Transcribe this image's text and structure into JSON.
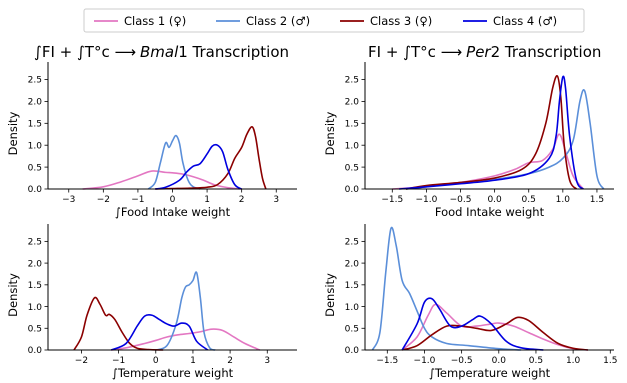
{
  "legend": [
    {
      "label": "Class 1 (♀)",
      "color": "#e377c2"
    },
    {
      "label": "Class 2 (♂)",
      "color": "#5b8fd9"
    },
    {
      "label": "Class 3 (♀)",
      "color": "#8b0000"
    },
    {
      "label": "Class 4 (♂)",
      "color": "#0000e0"
    }
  ],
  "titles": {
    "left": {
      "pre": "∫FI + ∫T°c ⟶",
      "italic": "Bmal",
      "post": "1 Transcription"
    },
    "right": {
      "pre": "FI + ∫T°c ⟶",
      "italic": "Per",
      "post": "2 Transcription"
    }
  },
  "chart_data": [
    {
      "type": "area",
      "xlabel": "∫Food Intake weight",
      "ylabel": "Density",
      "xlim": [
        -3.6,
        3.6
      ],
      "ylim": [
        0,
        2.9
      ],
      "xticks": [
        -3,
        -2,
        -1,
        0,
        1,
        2,
        3
      ],
      "xtick_labels": [
        "−3",
        "−2",
        "−1",
        "0",
        "1",
        "2",
        "3"
      ],
      "yticks": [
        0.0,
        0.5,
        1.0,
        1.5,
        2.0,
        2.5
      ],
      "ytick_labels": [
        "0.0",
        "0.5",
        "1.0",
        "1.5",
        "2.0",
        "2.5"
      ],
      "series": [
        {
          "name": "Class 1 (♀)",
          "color": "#e377c2",
          "x": [
            -2.6,
            -2.0,
            -1.5,
            -1.0,
            -0.6,
            -0.2,
            0.0,
            0.3,
            0.6,
            0.9,
            1.2,
            1.6,
            2.0
          ],
          "y": [
            0.0,
            0.05,
            0.16,
            0.3,
            0.41,
            0.38,
            0.37,
            0.34,
            0.28,
            0.2,
            0.1,
            0.03,
            0.0
          ]
        },
        {
          "name": "Class 2 (♂)",
          "color": "#5b8fd9",
          "x": [
            -0.7,
            -0.5,
            -0.35,
            -0.2,
            -0.1,
            0.0,
            0.1,
            0.2,
            0.3,
            0.45,
            0.6,
            0.8
          ],
          "y": [
            0.0,
            0.15,
            0.6,
            1.05,
            0.95,
            1.1,
            1.22,
            1.05,
            0.6,
            0.2,
            0.05,
            0.0
          ]
        },
        {
          "name": "Class 3 (♀)",
          "color": "#8b0000",
          "x": [
            -0.5,
            0.0,
            0.5,
            1.0,
            1.3,
            1.6,
            1.8,
            2.0,
            2.15,
            2.3,
            2.4,
            2.5,
            2.6,
            2.7
          ],
          "y": [
            0.0,
            0.01,
            0.02,
            0.04,
            0.1,
            0.35,
            0.7,
            0.95,
            1.25,
            1.42,
            1.2,
            0.7,
            0.25,
            0.0
          ]
        },
        {
          "name": "Class 4 (♂)",
          "color": "#0000e0",
          "x": [
            -0.5,
            -0.2,
            0.2,
            0.4,
            0.6,
            0.8,
            1.0,
            1.15,
            1.3,
            1.45,
            1.6,
            1.8,
            2.0
          ],
          "y": [
            0.0,
            0.04,
            0.2,
            0.38,
            0.52,
            0.58,
            0.8,
            0.98,
            1.0,
            0.85,
            0.45,
            0.1,
            0.0
          ]
        }
      ]
    },
    {
      "type": "area",
      "xlabel": "Food Intake weight",
      "ylabel": "Density",
      "xlim": [
        -1.9,
        1.75
      ],
      "ylim": [
        0,
        2.9
      ],
      "xticks": [
        -1.5,
        -1.0,
        -0.5,
        0.0,
        0.5,
        1.0,
        1.5
      ],
      "xtick_labels": [
        "−1.5",
        "−1.0",
        "−0.5",
        "0.0",
        "0.5",
        "1.0",
        "1.5"
      ],
      "yticks": [
        0.0,
        0.5,
        1.0,
        1.5,
        2.0,
        2.5
      ],
      "ytick_labels": [
        "0.0",
        "0.5",
        "1.0",
        "1.5",
        "2.0",
        "2.5"
      ],
      "series": [
        {
          "name": "Class 1 (♀)",
          "color": "#e377c2",
          "x": [
            -1.5,
            -1.2,
            -0.9,
            -0.5,
            0.0,
            0.3,
            0.5,
            0.7,
            0.85,
            0.95,
            1.05,
            1.15,
            1.3
          ],
          "y": [
            0.0,
            0.03,
            0.08,
            0.15,
            0.3,
            0.45,
            0.6,
            0.65,
            0.9,
            1.25,
            0.8,
            0.3,
            0.0
          ]
        },
        {
          "name": "Class 2 (♂)",
          "color": "#5b8fd9",
          "x": [
            -1.3,
            -1.0,
            -0.5,
            0.0,
            0.5,
            0.8,
            1.0,
            1.15,
            1.25,
            1.32,
            1.4,
            1.5,
            1.6
          ],
          "y": [
            0.0,
            0.05,
            0.15,
            0.22,
            0.35,
            0.5,
            0.7,
            1.1,
            2.0,
            2.24,
            1.5,
            0.3,
            0.0
          ]
        },
        {
          "name": "Class 3 (♀)",
          "color": "#8b0000",
          "x": [
            -1.3,
            -1.0,
            -0.5,
            0.0,
            0.4,
            0.6,
            0.75,
            0.85,
            0.92,
            0.97,
            1.02,
            1.1,
            1.2
          ],
          "y": [
            0.0,
            0.08,
            0.15,
            0.25,
            0.45,
            0.8,
            1.5,
            2.3,
            2.58,
            2.1,
            1.0,
            0.2,
            0.0
          ]
        },
        {
          "name": "Class 4 (♂)",
          "color": "#0000e0",
          "x": [
            -1.4,
            -1.0,
            -0.5,
            0.0,
            0.5,
            0.8,
            0.9,
            0.95,
            1.0,
            1.04,
            1.1,
            1.2,
            1.3
          ],
          "y": [
            0.0,
            0.05,
            0.12,
            0.2,
            0.35,
            0.7,
            1.2,
            2.0,
            2.56,
            2.3,
            1.2,
            0.2,
            0.0
          ]
        }
      ]
    },
    {
      "type": "area",
      "xlabel": "∫Temperature weight",
      "ylabel": "Density",
      "xlim": [
        -2.9,
        3.8
      ],
      "ylim": [
        0,
        2.9
      ],
      "xticks": [
        -2,
        -1,
        0,
        1,
        2,
        3
      ],
      "xtick_labels": [
        "−2",
        "−1",
        "0",
        "1",
        "2",
        "3"
      ],
      "yticks": [
        0.0,
        0.5,
        1.0,
        1.5,
        2.0,
        2.5
      ],
      "ytick_labels": [
        "0.0",
        "0.5",
        "1.0",
        "1.5",
        "2.0",
        "2.5"
      ],
      "series": [
        {
          "name": "Class 1 (♀)",
          "color": "#e377c2",
          "x": [
            -1.2,
            -0.8,
            -0.3,
            0.0,
            0.3,
            0.6,
            0.9,
            1.2,
            1.5,
            1.8,
            2.1,
            2.4,
            2.8
          ],
          "y": [
            0.0,
            0.05,
            0.15,
            0.22,
            0.3,
            0.35,
            0.38,
            0.42,
            0.48,
            0.45,
            0.3,
            0.15,
            0.0
          ]
        },
        {
          "name": "Class 2 (♂)",
          "color": "#5b8fd9",
          "x": [
            0.0,
            0.3,
            0.55,
            0.7,
            0.8,
            0.9,
            1.0,
            1.1,
            1.2,
            1.3,
            1.45,
            1.6
          ],
          "y": [
            0.0,
            0.1,
            0.6,
            1.2,
            1.45,
            1.5,
            1.6,
            1.78,
            1.2,
            0.4,
            0.05,
            0.0
          ]
        },
        {
          "name": "Class 3 (♀)",
          "color": "#8b0000",
          "x": [
            -2.2,
            -2.0,
            -1.85,
            -1.65,
            -1.5,
            -1.35,
            -1.25,
            -1.1,
            -0.9,
            -0.7,
            -0.5,
            -0.2,
            0.2
          ],
          "y": [
            0.0,
            0.3,
            0.8,
            1.2,
            1.05,
            0.8,
            0.82,
            0.7,
            0.4,
            0.15,
            0.04,
            0.01,
            0.0
          ]
        },
        {
          "name": "Class 4 (♂)",
          "color": "#0000e0",
          "x": [
            -1.2,
            -0.8,
            -0.5,
            -0.3,
            -0.1,
            0.1,
            0.3,
            0.5,
            0.7,
            0.9,
            1.1,
            1.4
          ],
          "y": [
            0.0,
            0.15,
            0.55,
            0.78,
            0.8,
            0.7,
            0.6,
            0.55,
            0.62,
            0.55,
            0.2,
            0.0
          ]
        }
      ]
    },
    {
      "type": "area",
      "xlabel": "∫Temperature weight",
      "ylabel": "Density",
      "xlim": [
        -1.8,
        1.55
      ],
      "ylim": [
        0,
        2.9
      ],
      "xticks": [
        -1.5,
        -1.0,
        -0.5,
        0.0,
        0.5,
        1.0,
        1.5
      ],
      "xtick_labels": [
        "−1.5",
        "−1.0",
        "−0.5",
        "0.0",
        "0.5",
        "1.0",
        "1.5"
      ],
      "yticks": [
        0.0,
        0.5,
        1.0,
        1.5,
        2.0,
        2.5
      ],
      "ytick_labels": [
        "0.0",
        "0.5",
        "1.0",
        "1.5",
        "2.0",
        "2.5"
      ],
      "series": [
        {
          "name": "Class 1 (♀)",
          "color": "#e377c2",
          "x": [
            -1.3,
            -1.1,
            -0.95,
            -0.85,
            -0.7,
            -0.5,
            -0.3,
            -0.1,
            0.0,
            0.2,
            0.4,
            0.6,
            0.8,
            1.0,
            1.2
          ],
          "y": [
            0.0,
            0.3,
            0.8,
            1.05,
            0.85,
            0.55,
            0.55,
            0.6,
            0.62,
            0.55,
            0.4,
            0.25,
            0.12,
            0.03,
            0.0
          ]
        },
        {
          "name": "Class 2 (♂)",
          "color": "#5b8fd9",
          "x": [
            -1.7,
            -1.6,
            -1.52,
            -1.45,
            -1.38,
            -1.3,
            -1.2,
            -1.1,
            -1.0,
            -0.9,
            -0.7,
            -0.4,
            0.0,
            0.3
          ],
          "y": [
            0.0,
            0.4,
            1.8,
            2.8,
            2.4,
            1.6,
            1.3,
            0.9,
            0.5,
            0.3,
            0.15,
            0.1,
            0.03,
            0.0
          ]
        },
        {
          "name": "Class 3 (♀)",
          "color": "#8b0000",
          "x": [
            -1.3,
            -1.1,
            -0.9,
            -0.7,
            -0.5,
            -0.3,
            -0.1,
            0.1,
            0.25,
            0.4,
            0.6,
            0.8,
            1.0,
            1.2
          ],
          "y": [
            0.0,
            0.1,
            0.35,
            0.55,
            0.55,
            0.5,
            0.45,
            0.6,
            0.75,
            0.68,
            0.4,
            0.15,
            0.04,
            0.0
          ]
        },
        {
          "name": "Class 4 (♂)",
          "color": "#0000e0",
          "x": [
            -1.3,
            -1.1,
            -1.0,
            -0.9,
            -0.8,
            -0.65,
            -0.5,
            -0.35,
            -0.25,
            -0.1,
            0.1,
            0.3,
            0.6
          ],
          "y": [
            0.0,
            0.6,
            1.1,
            1.18,
            0.95,
            0.55,
            0.55,
            0.7,
            0.78,
            0.6,
            0.2,
            0.05,
            0.0
          ]
        }
      ]
    }
  ]
}
